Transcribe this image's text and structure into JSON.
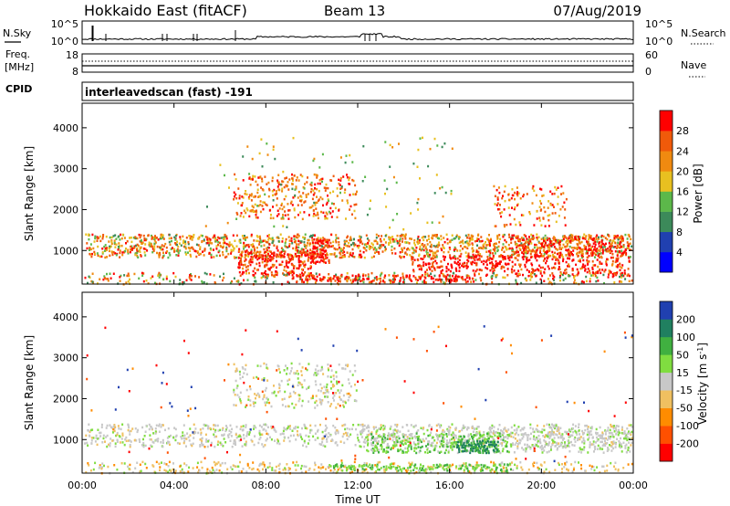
{
  "header": {
    "title": "Hokkaido East (fitACF)",
    "beam": "Beam 13",
    "date": "07/Aug/2019"
  },
  "nsky_panel": {
    "left_label": "N.Sky",
    "left_ticks": [
      "10^5",
      "10^0"
    ],
    "right_label": "N.Search",
    "right_ticks": [
      "10^5",
      "10^0"
    ]
  },
  "freq_panel": {
    "left_label_1": "Freq.",
    "left_label_2": "[MHz]",
    "left_ticks": [
      "18",
      "8"
    ],
    "right_label": "Nave",
    "right_ticks": [
      "60",
      "0"
    ]
  },
  "cpid": {
    "label": "CPID",
    "value": "interleavedscan (fast) -191"
  },
  "colors": {
    "power": [
      "#0000ff",
      "#2040b0",
      "#3c8a5a",
      "#5cb84a",
      "#e8c020",
      "#f08a10",
      "#f05a0a",
      "#ff0000"
    ],
    "velocity": [
      "#ff0000",
      "#ff5000",
      "#ff8c00",
      "#f0c060",
      "#c8c8c8",
      "#80dd40",
      "#40b040",
      "#208060",
      "#2040b0"
    ]
  },
  "chart_data": [
    {
      "type": "heatmap",
      "name": "power",
      "xlabel": "Time UT",
      "ylabel": "Slant Range [km]",
      "xlim": [
        0,
        24
      ],
      "ylim": [
        180,
        4600
      ],
      "x_ticks": [
        "00:00",
        "04:00",
        "08:00",
        "12:00",
        "16:00",
        "20:00",
        "00:00"
      ],
      "y_ticks": [
        1000,
        2000,
        3000,
        4000
      ],
      "colorbar": {
        "label": "Power [dB]",
        "range": [
          0,
          32
        ],
        "ticks": [
          4,
          8,
          12,
          16,
          20,
          24,
          28
        ]
      }
    },
    {
      "type": "heatmap",
      "name": "velocity",
      "xlabel": "Time UT",
      "ylabel": "Slant Range [km]",
      "xlim": [
        0,
        24
      ],
      "ylim": [
        180,
        4600
      ],
      "x_ticks": [
        "00:00",
        "04:00",
        "08:00",
        "12:00",
        "16:00",
        "20:00",
        "00:00"
      ],
      "y_ticks": [
        1000,
        2000,
        3000,
        4000
      ],
      "colorbar": {
        "label": "Velocity [m s^-1]",
        "ticks": [
          200,
          100,
          50,
          15,
          -15,
          -50,
          -100,
          -200
        ]
      }
    }
  ]
}
